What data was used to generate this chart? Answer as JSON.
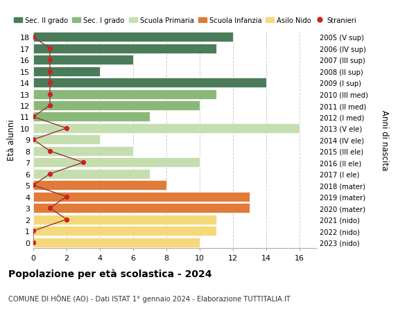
{
  "ages": [
    18,
    17,
    16,
    15,
    14,
    13,
    12,
    11,
    10,
    9,
    8,
    7,
    6,
    5,
    4,
    3,
    2,
    1,
    0
  ],
  "years": [
    "2005 (V sup)",
    "2006 (IV sup)",
    "2007 (III sup)",
    "2008 (II sup)",
    "2009 (I sup)",
    "2010 (III med)",
    "2011 (II med)",
    "2012 (I med)",
    "2013 (V ele)",
    "2014 (IV ele)",
    "2015 (III ele)",
    "2016 (II ele)",
    "2017 (I ele)",
    "2018 (mater)",
    "2019 (mater)",
    "2020 (mater)",
    "2021 (nido)",
    "2022 (nido)",
    "2023 (nido)"
  ],
  "bar_values": [
    12,
    11,
    6,
    4,
    14,
    11,
    10,
    7,
    16,
    4,
    6,
    10,
    7,
    8,
    13,
    13,
    11,
    11,
    10
  ],
  "stranieri": [
    0,
    1,
    1,
    1,
    1,
    1,
    1,
    0,
    2,
    0,
    1,
    3,
    1,
    0,
    2,
    1,
    2,
    0,
    0
  ],
  "bar_colors": [
    "#4a7c59",
    "#4a7c59",
    "#4a7c59",
    "#4a7c59",
    "#4a7c59",
    "#8ab87a",
    "#8ab87a",
    "#8ab87a",
    "#c5deb0",
    "#c5deb0",
    "#c5deb0",
    "#c5deb0",
    "#c5deb0",
    "#e07b39",
    "#e07b39",
    "#e07b39",
    "#f5d87a",
    "#f5d87a",
    "#f5d87a"
  ],
  "legend_labels": [
    "Sec. II grado",
    "Sec. I grado",
    "Scuola Primaria",
    "Scuola Infanzia",
    "Asilo Nido",
    "Stranieri"
  ],
  "legend_colors": [
    "#4a7c59",
    "#8ab87a",
    "#c5deb0",
    "#e07b39",
    "#f5d87a",
    "#cc2222"
  ],
  "stranieri_color": "#cc2222",
  "stranieri_line_color": "#993333",
  "xlim": [
    0,
    17
  ],
  "xticks": [
    0,
    2,
    4,
    6,
    8,
    10,
    12,
    14,
    16
  ],
  "ylabel_left": "Età alunni",
  "ylabel_right": "Anni di nascita",
  "title": "Popolazione per età scolastica - 2024",
  "subtitle": "COMUNE DI HÔNE (AO) - Dati ISTAT 1° gennaio 2024 - Elaborazione TUTTITALIA.IT",
  "grid_color": "#cccccc",
  "bg_color": "#ffffff"
}
